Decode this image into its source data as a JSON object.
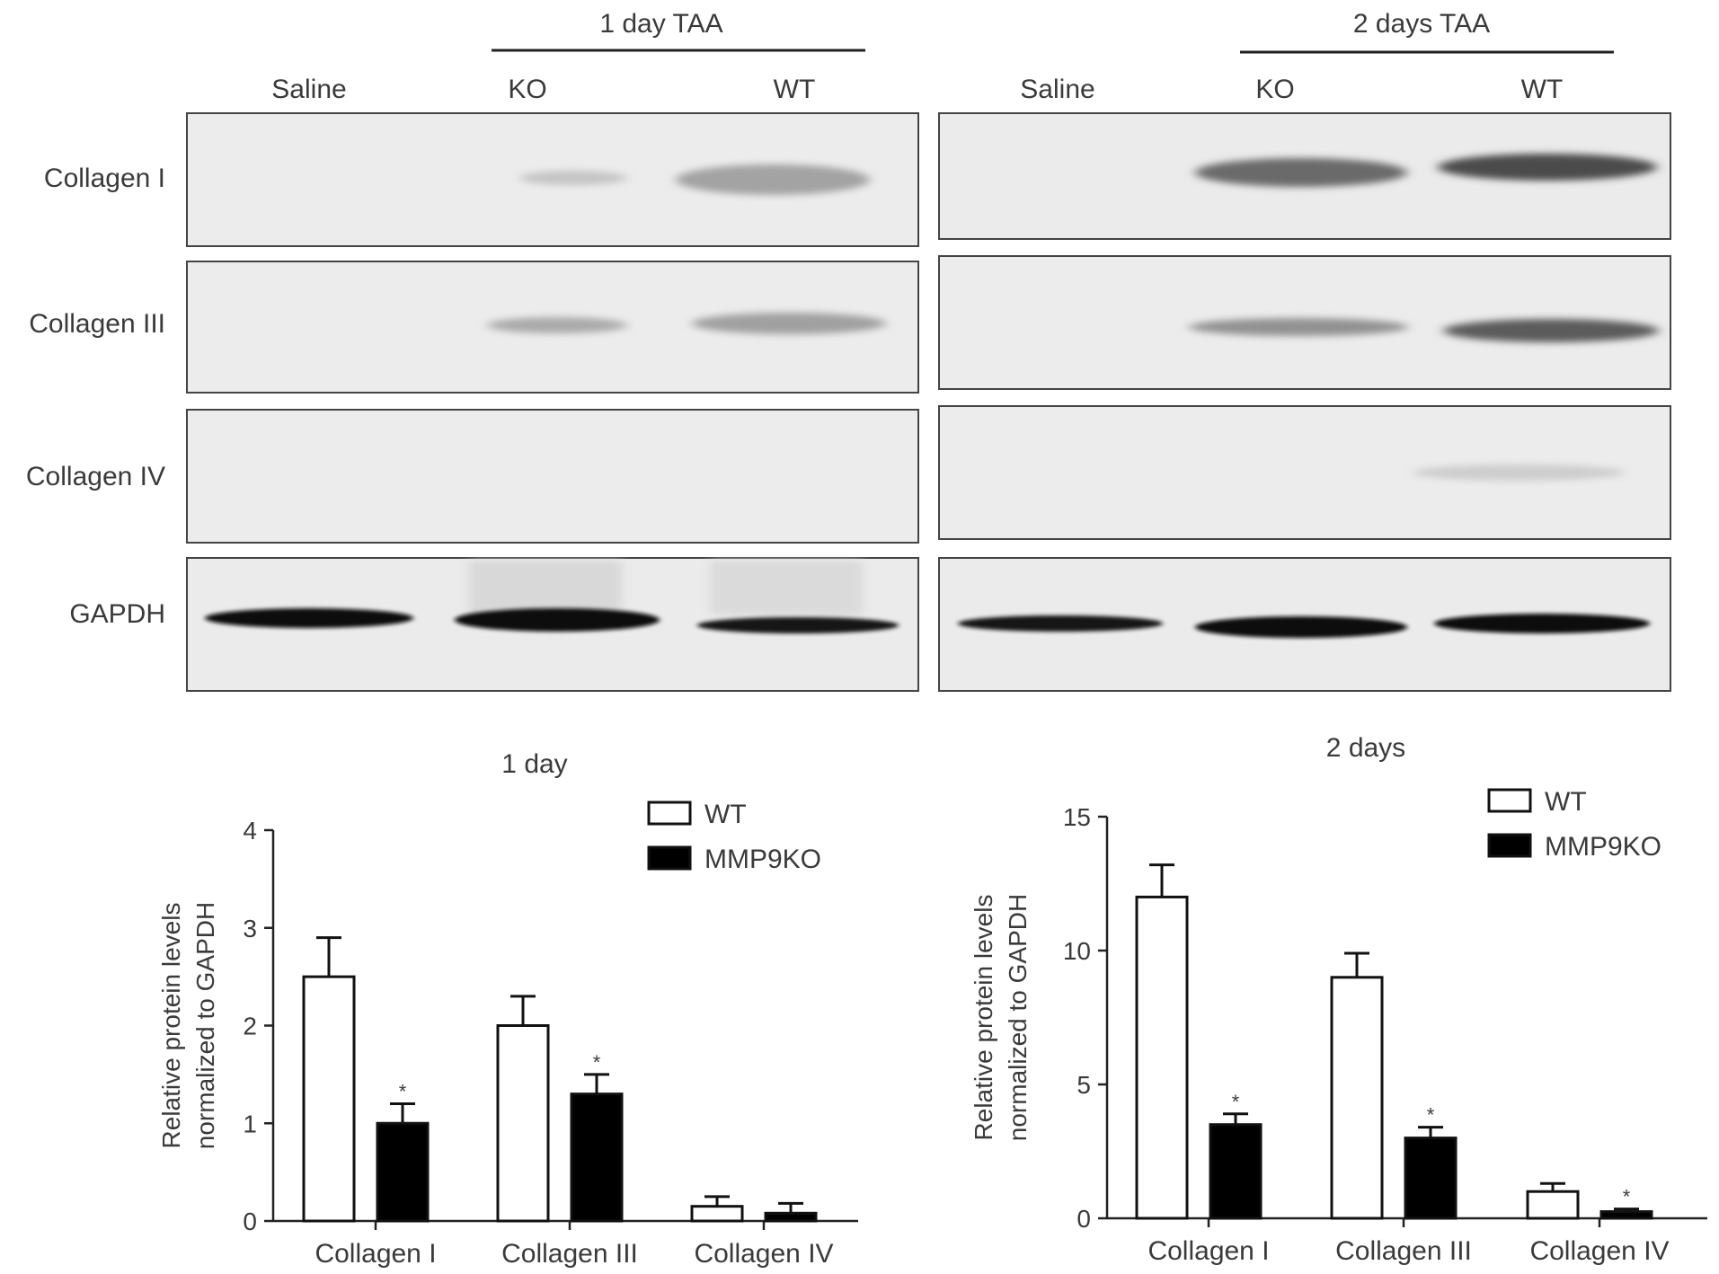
{
  "blots": [
    {
      "group_label": "1 day TAA",
      "lanes": [
        "Saline",
        "KO",
        "WT"
      ],
      "rows": [
        "Collagen I",
        "Collagen III",
        "Collagen IV",
        "GAPDH"
      ]
    },
    {
      "group_label": "2 days TAA",
      "lanes": [
        "Saline",
        "KO",
        "WT"
      ],
      "rows": [
        "Collagen I",
        "Collagen III",
        "Collagen IV",
        "GAPDH"
      ]
    }
  ],
  "chart_data": [
    {
      "type": "bar",
      "title": "1 day",
      "ylabel": "Relative protein levels normalized to GAPDH",
      "ylabel_lines": [
        "Relative protein levels",
        "normalized to GAPDH"
      ],
      "categories": [
        "Collagen I",
        "Collagen III",
        "Collagen IV"
      ],
      "ylim": [
        0,
        4
      ],
      "yticks": [
        0,
        1,
        2,
        3,
        4
      ],
      "series": [
        {
          "name": "WT",
          "values": [
            2.5,
            2.0,
            0.15
          ],
          "errors": [
            0.4,
            0.3,
            0.1
          ],
          "color": "#ffffff"
        },
        {
          "name": "MMP9KO",
          "values": [
            1.0,
            1.3,
            0.08
          ],
          "errors": [
            0.2,
            0.2,
            0.1
          ],
          "color": "#000000"
        }
      ],
      "significance": [
        "*",
        "*",
        ""
      ],
      "legend": "top-right"
    },
    {
      "type": "bar",
      "title": "2 days",
      "ylabel": "Relative protein levels normalized to GAPDH",
      "ylabel_lines": [
        "Relative protein levels",
        "normalized to GAPDH"
      ],
      "categories": [
        "Collagen I",
        "Collagen III",
        "Collagen IV"
      ],
      "ylim": [
        0,
        15
      ],
      "yticks": [
        0,
        5,
        10,
        15
      ],
      "series": [
        {
          "name": "WT",
          "values": [
            12.0,
            9.0,
            1.0
          ],
          "errors": [
            1.2,
            0.9,
            0.3
          ],
          "color": "#ffffff"
        },
        {
          "name": "MMP9KO",
          "values": [
            3.5,
            3.0,
            0.25
          ],
          "errors": [
            0.4,
            0.4,
            0.1
          ],
          "color": "#000000"
        }
      ],
      "significance": [
        "*",
        "*",
        "*"
      ],
      "legend": "top-right"
    }
  ]
}
